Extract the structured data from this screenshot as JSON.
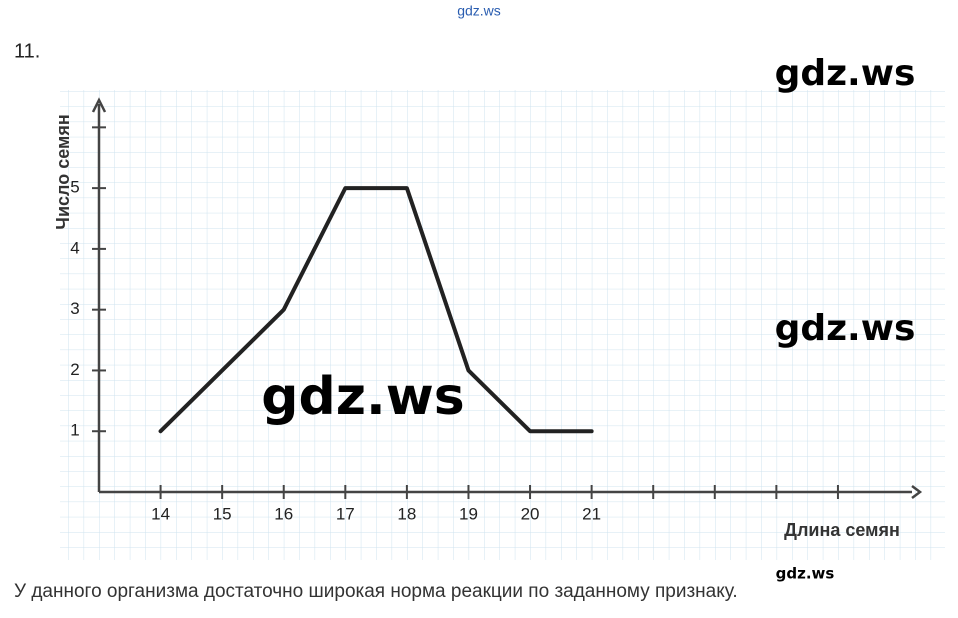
{
  "header": {
    "source": "gdz.ws",
    "number": "11."
  },
  "watermarks": [
    "gdz.ws",
    "gdz.ws",
    "gdz.ws",
    "gdz.ws"
  ],
  "caption": "У данного организма достаточно широкая норма реакции по заданному признаку.",
  "chart_data": {
    "type": "line",
    "x_label": "Длина семян",
    "y_label": "Число семян",
    "x": [
      14,
      15,
      16,
      17,
      18,
      19,
      20,
      21
    ],
    "values": [
      1,
      2,
      3,
      5,
      5,
      2,
      1,
      1
    ],
    "color": "#222222",
    "xlim": [
      13,
      26.3
    ],
    "ylim": [
      0,
      6.45
    ],
    "xticks": [
      14,
      15,
      16,
      17,
      18,
      19,
      20,
      21
    ],
    "xticks_unlabeled": [
      22,
      23,
      24,
      25
    ],
    "yticks": [
      1,
      2,
      3,
      4,
      5
    ],
    "yticks_unlabeled": [
      6
    ],
    "grid": true
  }
}
